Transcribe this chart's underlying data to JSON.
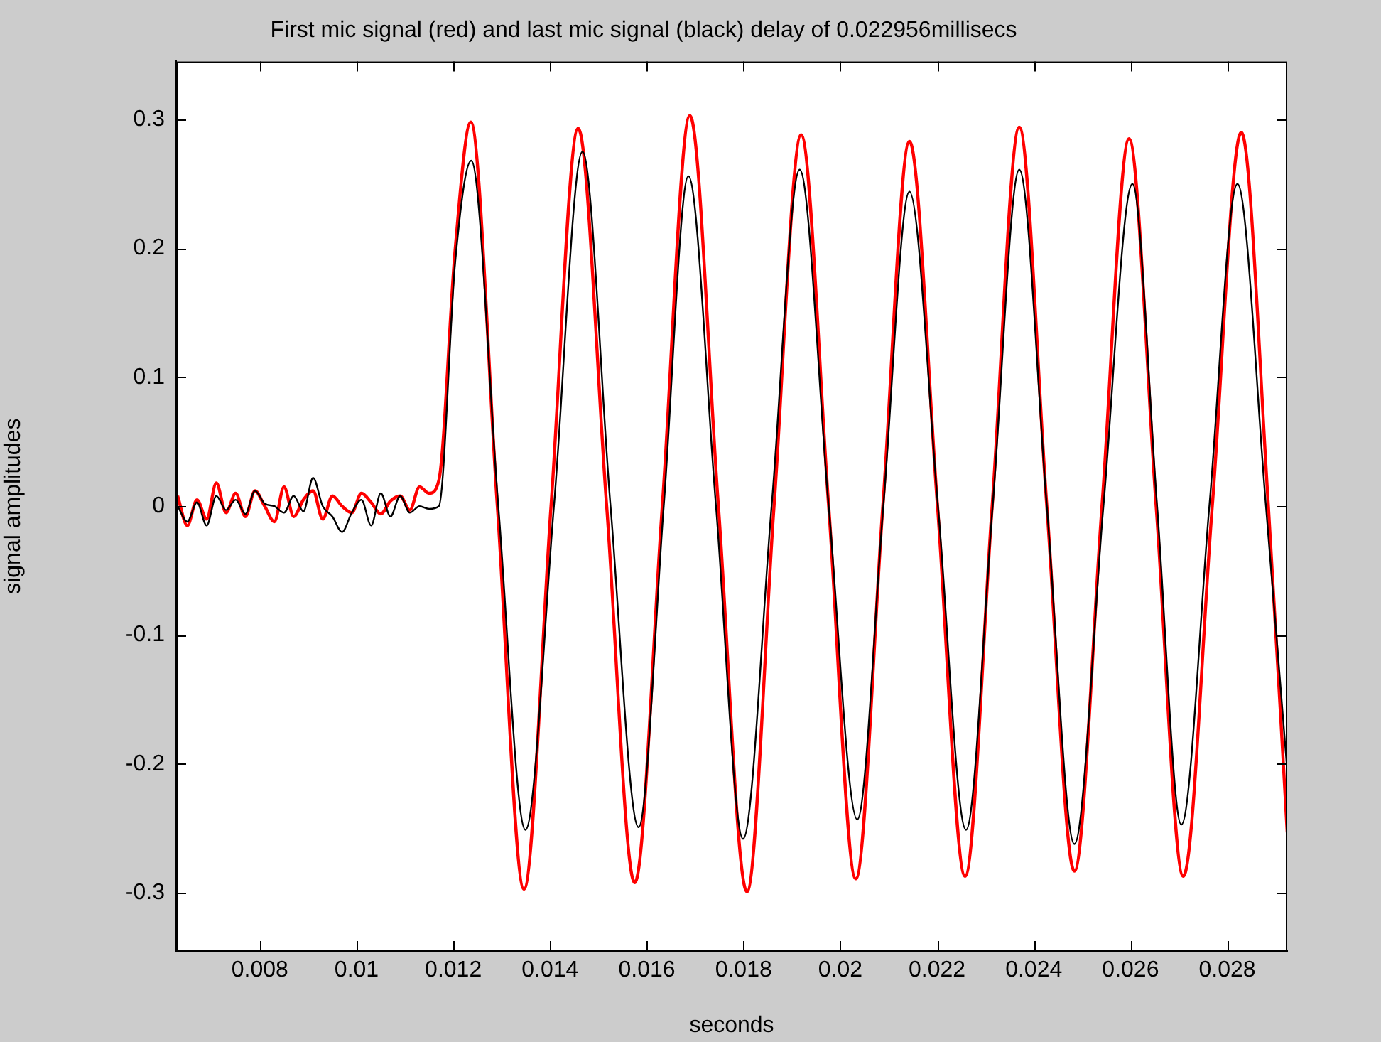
{
  "chart_data": {
    "type": "line",
    "title": "First mic signal (red) and last mic signal (black) delay of 0.022956millisecs",
    "xlabel": "seconds",
    "ylabel": "signal amplitudes",
    "xlim": [
      0.00627,
      0.02924
    ],
    "ylim": [
      -0.345,
      0.345
    ],
    "xticks": [
      0.008,
      0.01,
      0.012,
      0.014,
      0.016,
      0.018,
      0.02,
      0.022,
      0.024,
      0.026,
      0.028
    ],
    "yticks": [
      -0.3,
      -0.2,
      -0.1,
      0,
      0.1,
      0.2,
      0.3
    ],
    "marker": "none",
    "line_style": "solid",
    "legend": false,
    "series": [
      {
        "color": "#ff0000",
        "x": [
          0.0063,
          0.0065,
          0.0067,
          0.0069,
          0.0071,
          0.0073,
          0.0075,
          0.0077,
          0.0079,
          0.0081,
          0.0083,
          0.0085,
          0.0087,
          0.0089,
          0.0091,
          0.0093,
          0.0095,
          0.0097,
          0.0099,
          0.0101,
          0.0103,
          0.0105,
          0.0107,
          0.0109,
          0.0111,
          0.0113,
          0.0115,
          0.0117,
          0.01204,
          0.01236,
          0.01291,
          0.01346,
          0.01402,
          0.01458,
          0.01517,
          0.01575,
          0.01632,
          0.01689,
          0.01748,
          0.01807,
          0.01863,
          0.01919,
          0.01976,
          0.02032,
          0.02088,
          0.02143,
          0.02201,
          0.02258,
          0.02314,
          0.0237,
          0.02427,
          0.02484,
          0.02541,
          0.02597,
          0.02653,
          0.02709,
          0.02769,
          0.02829,
          0.02885,
          0.02924
        ],
        "values": [
          0.008,
          -0.015,
          0.005,
          -0.01,
          0.018,
          -0.005,
          0.01,
          -0.008,
          0.012,
          0,
          -0.012,
          0.015,
          -0.008,
          0.005,
          0.012,
          -0.01,
          0.008,
          0,
          -0.005,
          0.01,
          0.003,
          -0.006,
          0.004,
          0.008,
          -0.003,
          0.015,
          0.01,
          0.02,
          0.2,
          0.298,
          0,
          -0.297,
          0,
          0.293,
          0,
          -0.292,
          0,
          0.303,
          0,
          -0.299,
          0,
          0.288,
          0,
          -0.289,
          0,
          0.283,
          0,
          -0.287,
          0,
          0.294,
          0,
          -0.283,
          0,
          0.285,
          0,
          -0.287,
          0,
          0.29,
          0,
          -0.253
        ]
      },
      {
        "color": "#000000",
        "x": [
          0.0063,
          0.0065,
          0.0067,
          0.0069,
          0.0071,
          0.0073,
          0.0075,
          0.0077,
          0.0079,
          0.0081,
          0.0083,
          0.0085,
          0.0087,
          0.0089,
          0.0091,
          0.0093,
          0.0095,
          0.0097,
          0.0099,
          0.0101,
          0.0103,
          0.0105,
          0.0107,
          0.0109,
          0.0111,
          0.0113,
          0.0115,
          0.0117,
          0.01204,
          0.01237,
          0.01293,
          0.01349,
          0.01408,
          0.01467,
          0.01525,
          0.01583,
          0.01635,
          0.01686,
          0.01743,
          0.01799,
          0.01858,
          0.01916,
          0.01976,
          0.02035,
          0.02089,
          0.02143,
          0.02202,
          0.0226,
          0.02315,
          0.0237,
          0.02427,
          0.02484,
          0.02544,
          0.02604,
          0.02655,
          0.02705,
          0.02763,
          0.02821,
          0.0288,
          0.02924
        ],
        "values": [
          0,
          -0.012,
          0.003,
          -0.015,
          0.008,
          -0.003,
          0.005,
          -0.006,
          0.012,
          0.002,
          0,
          -0.005,
          0.008,
          -0.004,
          0.022,
          0,
          -0.008,
          -0.02,
          -0.005,
          0.005,
          -0.015,
          0.01,
          -0.008,
          0.008,
          -0.005,
          0,
          -0.002,
          0,
          0.19,
          0.268,
          0,
          -0.251,
          0,
          0.275,
          0,
          -0.249,
          0,
          0.256,
          0,
          -0.258,
          0,
          0.261,
          0,
          -0.243,
          0,
          0.244,
          0,
          -0.251,
          0,
          0.261,
          0,
          -0.262,
          0,
          0.25,
          0,
          -0.247,
          0,
          0.25,
          0,
          -0.205
        ]
      }
    ]
  }
}
